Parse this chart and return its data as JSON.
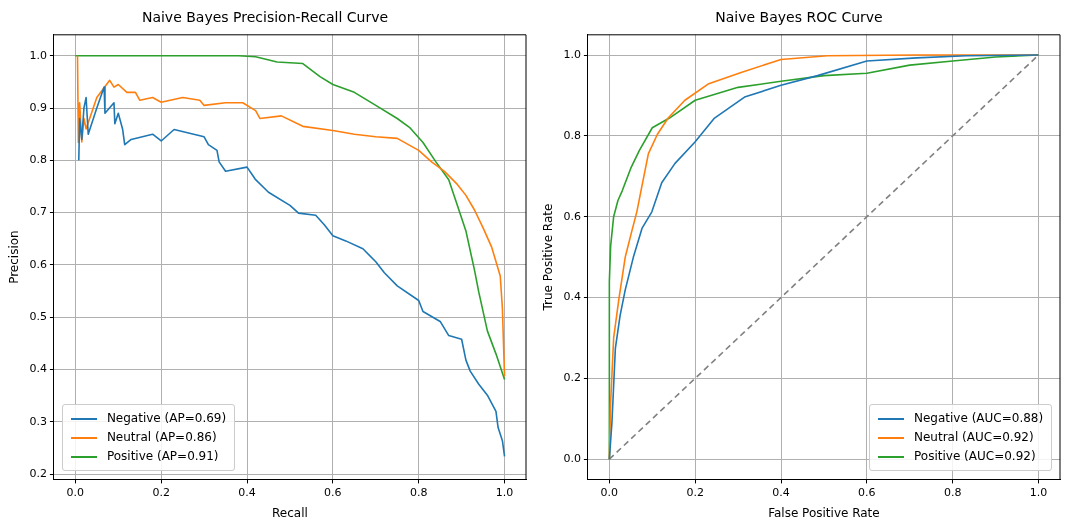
{
  "chart_data": [
    {
      "type": "line",
      "title": "Naive Bayes Precision-Recall Curve",
      "xlabel": "Recall",
      "ylabel": "Precision",
      "grid": true,
      "legend": "bottom left",
      "marker": "none",
      "xlim": [
        -0.05,
        1.05
      ],
      "ylim": [
        0.19,
        1.04
      ],
      "xticks": [
        {
          "value": 0,
          "label": "0.0"
        },
        {
          "value": 0.2,
          "label": "0.2"
        },
        {
          "value": 0.4,
          "label": "0.4"
        },
        {
          "value": 0.6,
          "label": "0.6"
        },
        {
          "value": 0.8,
          "label": "0.8"
        },
        {
          "value": 1,
          "label": "1.0"
        }
      ],
      "yticks": [
        {
          "value": 0.2,
          "label": "0.2"
        },
        {
          "value": 0.3,
          "label": "0.3"
        },
        {
          "value": 0.4,
          "label": "0.4"
        },
        {
          "value": 0.5,
          "label": "0.5"
        },
        {
          "value": 0.6,
          "label": "0.6"
        },
        {
          "value": 0.7,
          "label": "0.7"
        },
        {
          "value": 0.8,
          "label": "0.8"
        },
        {
          "value": 0.9,
          "label": "0.9"
        },
        {
          "value": 1,
          "label": "1.0"
        }
      ],
      "series": [
        {
          "name": "Negative (AP=0.69)",
          "color": "#1f77b4",
          "x": [
            0.008,
            0.01,
            0.015,
            0.02,
            0.025,
            0.03,
            0.05,
            0.067,
            0.069,
            0.09,
            0.092,
            0.1,
            0.11,
            0.115,
            0.13,
            0.18,
            0.2,
            0.23,
            0.3,
            0.31,
            0.33,
            0.335,
            0.35,
            0.4,
            0.42,
            0.45,
            0.5,
            0.52,
            0.56,
            0.58,
            0.6,
            0.63,
            0.67,
            0.7,
            0.72,
            0.75,
            0.8,
            0.81,
            0.85,
            0.87,
            0.9,
            0.91,
            0.92,
            0.94,
            0.96,
            0.98,
            0.985,
            0.995,
            1.0
          ],
          "values": [
            0.8,
            0.88,
            0.84,
            0.9,
            0.92,
            0.85,
            0.9,
            0.94,
            0.89,
            0.91,
            0.87,
            0.89,
            0.86,
            0.83,
            0.84,
            0.85,
            0.837,
            0.859,
            0.845,
            0.83,
            0.819,
            0.797,
            0.779,
            0.787,
            0.763,
            0.739,
            0.714,
            0.699,
            0.695,
            0.677,
            0.656,
            0.646,
            0.631,
            0.606,
            0.585,
            0.56,
            0.532,
            0.511,
            0.492,
            0.465,
            0.458,
            0.418,
            0.397,
            0.372,
            0.351,
            0.32,
            0.289,
            0.264,
            0.234
          ]
        },
        {
          "name": "Neutral (AP=0.86)",
          "color": "#ff7f0e",
          "x": [
            0.005,
            0.007,
            0.01,
            0.015,
            0.02,
            0.025,
            0.05,
            0.08,
            0.09,
            0.1,
            0.12,
            0.14,
            0.15,
            0.18,
            0.2,
            0.25,
            0.29,
            0.3,
            0.35,
            0.39,
            0.42,
            0.43,
            0.48,
            0.53,
            0.6,
            0.65,
            0.7,
            0.75,
            0.8,
            0.83,
            0.86,
            0.89,
            0.91,
            0.93,
            0.95,
            0.97,
            0.99,
            0.995,
            1.0
          ],
          "values": [
            1.0,
            0.834,
            0.91,
            0.835,
            0.88,
            0.86,
            0.92,
            0.953,
            0.94,
            0.945,
            0.93,
            0.93,
            0.915,
            0.92,
            0.911,
            0.92,
            0.915,
            0.905,
            0.91,
            0.91,
            0.895,
            0.88,
            0.885,
            0.865,
            0.857,
            0.85,
            0.845,
            0.842,
            0.819,
            0.797,
            0.779,
            0.754,
            0.733,
            0.705,
            0.671,
            0.634,
            0.579,
            0.517,
            0.387
          ]
        },
        {
          "name": "Positive (AP=0.91)",
          "color": "#2ca02c",
          "x": [
            0.0,
            0.38,
            0.42,
            0.47,
            0.53,
            0.57,
            0.6,
            0.65,
            0.7,
            0.75,
            0.78,
            0.81,
            0.84,
            0.87,
            0.89,
            0.91,
            0.93,
            0.94,
            0.96,
            0.98,
            1.0
          ],
          "values": [
            1.0,
            1.0,
            0.998,
            0.988,
            0.985,
            0.96,
            0.945,
            0.93,
            0.905,
            0.88,
            0.862,
            0.834,
            0.797,
            0.763,
            0.714,
            0.665,
            0.59,
            0.548,
            0.474,
            0.43,
            0.381
          ]
        }
      ]
    },
    {
      "type": "line",
      "title": "Naive Bayes ROC Curve",
      "xlabel": "False Positive Rate",
      "ylabel": "True Positive Rate",
      "grid": true,
      "legend": "bottom right",
      "marker": "none",
      "xlim": [
        -0.05,
        1.05
      ],
      "ylim": [
        -0.05,
        1.05
      ],
      "xticks": [
        {
          "value": 0,
          "label": "0.0"
        },
        {
          "value": 0.2,
          "label": "0.2"
        },
        {
          "value": 0.4,
          "label": "0.4"
        },
        {
          "value": 0.6,
          "label": "0.6"
        },
        {
          "value": 0.8,
          "label": "0.8"
        },
        {
          "value": 1,
          "label": "1.0"
        }
      ],
      "yticks": [
        {
          "value": 0,
          "label": "0.0"
        },
        {
          "value": 0.2,
          "label": "0.2"
        },
        {
          "value": 0.4,
          "label": "0.4"
        },
        {
          "value": 0.6,
          "label": "0.6"
        },
        {
          "value": 0.8,
          "label": "0.8"
        },
        {
          "value": 1,
          "label": "1.0"
        }
      ],
      "series": [
        {
          "name": "Negative (AUC=0.88)",
          "color": "#1f77b4",
          "x": [
            0,
            0.006,
            0.014,
            0.025,
            0.037,
            0.056,
            0.076,
            0.099,
            0.122,
            0.153,
            0.199,
            0.245,
            0.315,
            0.4,
            0.485,
            0.6,
            0.716,
            0.832,
            1
          ],
          "values": [
            0,
            0.09,
            0.274,
            0.355,
            0.419,
            0.5,
            0.571,
            0.612,
            0.684,
            0.732,
            0.784,
            0.844,
            0.896,
            0.925,
            0.949,
            0.985,
            0.993,
            0.998,
            1
          ]
        },
        {
          "name": "Neutral (AUC=0.92)",
          "color": "#ff7f0e",
          "x": [
            0,
            0.003,
            0.01,
            0.022,
            0.037,
            0.052,
            0.064,
            0.076,
            0.091,
            0.112,
            0.137,
            0.176,
            0.23,
            0.307,
            0.4,
            0.508,
            0.716,
            1
          ],
          "values": [
            0,
            0.14,
            0.3,
            0.395,
            0.5,
            0.563,
            0.612,
            0.676,
            0.756,
            0.804,
            0.844,
            0.888,
            0.928,
            0.957,
            0.989,
            0.998,
            1,
            1
          ]
        },
        {
          "name": "Positive (AUC=0.92)",
          "color": "#2ca02c",
          "x": [
            0,
            0,
            0.003,
            0.01,
            0.02,
            0.03,
            0.05,
            0.07,
            0.1,
            0.14,
            0.2,
            0.3,
            0.4,
            0.5,
            0.6,
            0.7,
            0.8,
            0.9,
            1
          ],
          "values": [
            0,
            0.44,
            0.527,
            0.6,
            0.64,
            0.664,
            0.72,
            0.764,
            0.82,
            0.844,
            0.888,
            0.92,
            0.935,
            0.949,
            0.955,
            0.975,
            0.985,
            0.995,
            1
          ]
        },
        {
          "color": "#808080",
          "line_style": "dashed",
          "x": [
            0,
            1
          ],
          "values": [
            0,
            1
          ]
        }
      ]
    }
  ]
}
